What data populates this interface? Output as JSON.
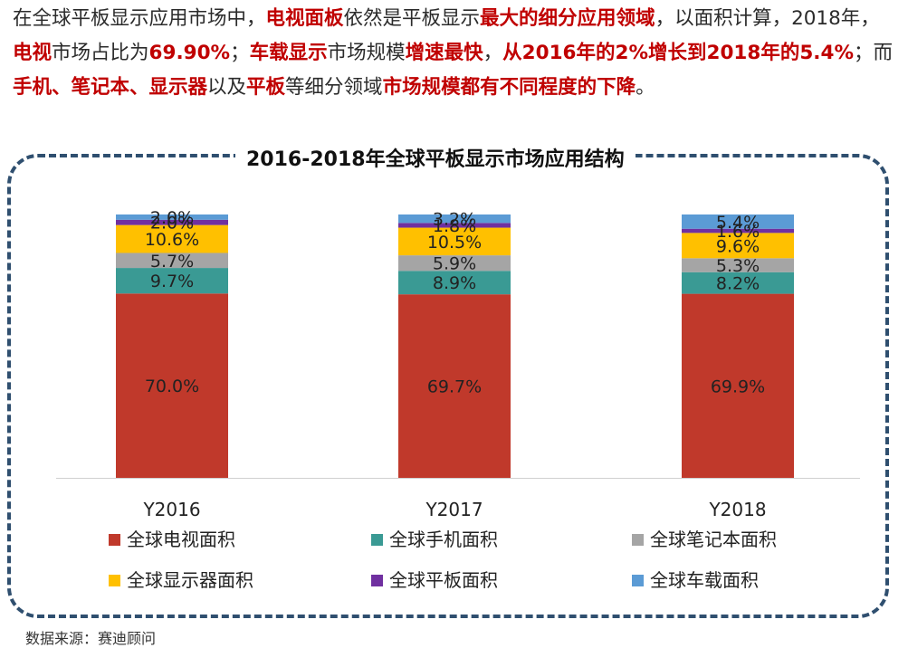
{
  "intro": {
    "segments": [
      {
        "text": "在全球平板显示应用市场中，",
        "highlight": false
      },
      {
        "text": "电视面板",
        "highlight": true
      },
      {
        "text": "依然是平板显示",
        "highlight": false
      },
      {
        "text": "最大的细分应用领域",
        "highlight": true
      },
      {
        "text": "，以面积计算，2018年，",
        "highlight": false
      },
      {
        "text": "电视",
        "highlight": true
      },
      {
        "text": "市场占比为",
        "highlight": false
      },
      {
        "text": "69.90%",
        "highlight": true
      },
      {
        "text": "；",
        "highlight": false
      },
      {
        "text": "车载显示",
        "highlight": true
      },
      {
        "text": "市场规模",
        "highlight": false
      },
      {
        "text": "增速最快",
        "highlight": true
      },
      {
        "text": "，",
        "highlight": false
      },
      {
        "text": "从2016年的2%增长到2018年的5.4%",
        "highlight": true
      },
      {
        "text": "；而",
        "highlight": false
      },
      {
        "text": "手机、笔记本、显示器",
        "highlight": true
      },
      {
        "text": "以及",
        "highlight": false
      },
      {
        "text": "平板",
        "highlight": true
      },
      {
        "text": "等细分领域",
        "highlight": false
      },
      {
        "text": "市场规模都有不同程度的下降",
        "highlight": true
      },
      {
        "text": "。",
        "highlight": false
      }
    ]
  },
  "source": "数据来源：赛迪顾问",
  "colors": {
    "tv": "#c0392b",
    "phone": "#3a9a94",
    "laptop": "#a5a5a5",
    "monitor": "#ffc000",
    "tablet": "#7030a0",
    "auto": "#5b9bd5"
  },
  "chart_data": {
    "type": "bar",
    "stacked": true,
    "title": "2016-2018年全球平板显示市场应用结构",
    "categories": [
      "Y2016",
      "Y2017",
      "Y2018"
    ],
    "ylim": [
      0,
      100
    ],
    "series": [
      {
        "name": "全球电视面积",
        "key": "tv",
        "values": [
          70.0,
          69.7,
          69.9
        ],
        "labels": [
          "70.0%",
          "69.7%",
          "69.9%"
        ]
      },
      {
        "name": "全球手机面积",
        "key": "phone",
        "values": [
          9.7,
          8.9,
          8.2
        ],
        "labels": [
          "9.7%",
          "8.9%",
          "8.2%"
        ]
      },
      {
        "name": "全球笔记本面积",
        "key": "laptop",
        "values": [
          5.7,
          5.9,
          5.3
        ],
        "labels": [
          "5.7%",
          "5.9%",
          "5.3%"
        ]
      },
      {
        "name": "全球显示器面积",
        "key": "monitor",
        "values": [
          10.6,
          10.5,
          9.6
        ],
        "labels": [
          "10.6%",
          "10.5%",
          "9.6%"
        ]
      },
      {
        "name": "全球平板面积",
        "key": "tablet",
        "values": [
          2.0,
          1.8,
          1.6
        ],
        "labels": [
          "2.0%",
          "1.8%",
          "1.6%"
        ]
      },
      {
        "name": "全球车载面积",
        "key": "auto",
        "values": [
          2.0,
          3.2,
          5.4
        ],
        "labels": [
          "2.0%",
          "3.2%",
          "5.4%"
        ]
      }
    ],
    "legend_position": "bottom"
  }
}
